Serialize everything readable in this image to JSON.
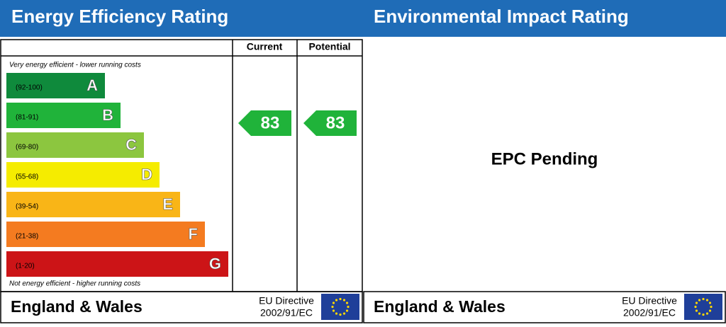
{
  "energy_efficiency": {
    "title": "Energy Efficiency Rating",
    "columns": [
      "Current",
      "Potential"
    ],
    "top_note": "Very energy efficient - lower running costs",
    "bottom_note": "Not energy efficient - higher running costs",
    "bands": [
      {
        "range": "(92-100)",
        "letter": "A",
        "color": "#0f8a3c"
      },
      {
        "range": "(81-91)",
        "letter": "B",
        "color": "#20b33a"
      },
      {
        "range": "(69-80)",
        "letter": "C",
        "color": "#8cc63f"
      },
      {
        "range": "(55-68)",
        "letter": "D",
        "color": "#f5ec00"
      },
      {
        "range": "(39-54)",
        "letter": "E",
        "color": "#f9b517"
      },
      {
        "range": "(21-38)",
        "letter": "F",
        "color": "#f47b20"
      },
      {
        "range": "(1-20)",
        "letter": "G",
        "color": "#cc1417"
      }
    ],
    "current": 83,
    "potential": 83,
    "rating_color": "#20b33a",
    "footer": {
      "region": "England & Wales",
      "directive": "EU Directive",
      "directive_code": "2002/91/EC"
    }
  },
  "environmental_impact": {
    "title": "Environmental Impact Rating",
    "status": "EPC Pending",
    "footer": {
      "region": "England & Wales",
      "directive": "EU Directive",
      "directive_code": "2002/91/EC"
    }
  }
}
